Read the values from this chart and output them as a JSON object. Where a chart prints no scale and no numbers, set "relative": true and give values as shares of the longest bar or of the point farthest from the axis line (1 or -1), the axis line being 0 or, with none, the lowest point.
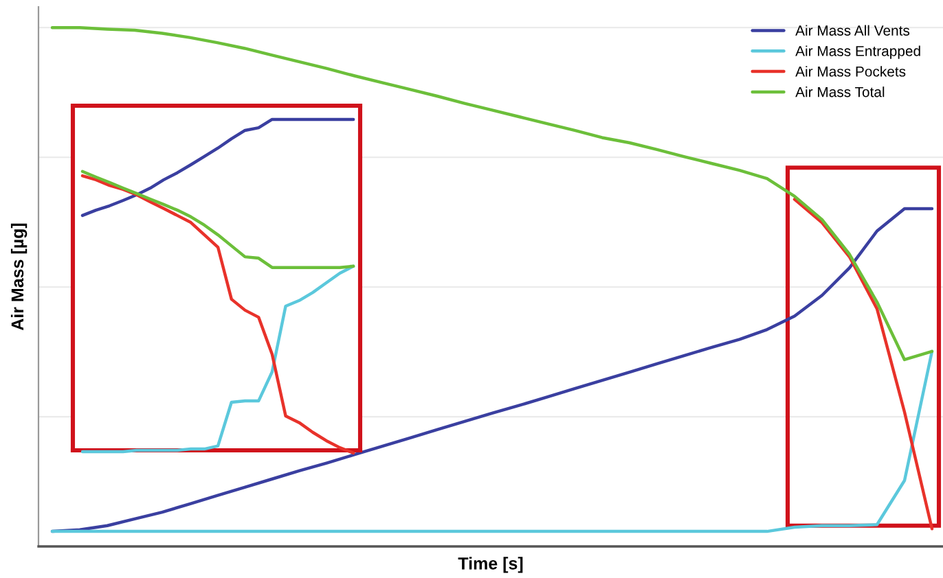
{
  "chart_data": [
    {
      "type": "line",
      "relative": true,
      "xlabel": "Time [s]",
      "ylabel": "Air Mass [µg]",
      "grid": "y",
      "legend": "top right",
      "categories": [
        null,
        null,
        null,
        null,
        null,
        null,
        null,
        null,
        null,
        null,
        null,
        null,
        null,
        null,
        null,
        null,
        null,
        null,
        null,
        null,
        null,
        null,
        null,
        null,
        null,
        null,
        null,
        null,
        null,
        null,
        null,
        null,
        null
      ],
      "series": [
        {
          "name": "Air Mass All Vents",
          "color": "#3a3fa0",
          "values": [
            0.029,
            0.032,
            0.04,
            0.053,
            0.066,
            0.082,
            0.098,
            0.114,
            0.13,
            0.146,
            0.161,
            0.177,
            0.193,
            0.209,
            0.225,
            0.241,
            0.257,
            0.272,
            0.288,
            0.304,
            0.32,
            0.336,
            0.352,
            0.368,
            0.384,
            0.399,
            0.418,
            0.444,
            0.484,
            0.537,
            0.608,
            0.651,
            0.651
          ]
        },
        {
          "name": "Air Mass Entrapped",
          "color": "#5bc8dc",
          "values": [
            0.029,
            0.029,
            0.029,
            0.029,
            0.029,
            0.029,
            0.029,
            0.029,
            0.029,
            0.029,
            0.029,
            0.029,
            0.029,
            0.029,
            0.029,
            0.029,
            0.029,
            0.029,
            0.029,
            0.029,
            0.029,
            0.029,
            0.029,
            0.029,
            0.029,
            0.029,
            0.029,
            0.037,
            0.04,
            0.04,
            0.042,
            0.127,
            0.376
          ]
        },
        {
          "name": "Air Mass Pockets",
          "color": "#e8322a",
          "values": [
            null,
            null,
            null,
            null,
            null,
            null,
            null,
            null,
            null,
            null,
            null,
            null,
            null,
            null,
            null,
            null,
            null,
            null,
            null,
            null,
            null,
            null,
            null,
            null,
            null,
            null,
            null,
            0.669,
            0.624,
            0.558,
            0.458,
            0.259,
            0.034
          ]
        },
        {
          "name": "Air Mass Total",
          "color": "#6cbf3a",
          "values": [
            1.0,
            1.0,
            0.997,
            0.995,
            0.989,
            0.981,
            0.971,
            0.96,
            0.947,
            0.934,
            0.921,
            0.907,
            0.894,
            0.881,
            0.868,
            0.854,
            0.841,
            0.828,
            0.815,
            0.802,
            0.788,
            0.778,
            0.765,
            0.751,
            0.738,
            0.725,
            0.709,
            0.675,
            0.63,
            0.563,
            0.471,
            0.36,
            0.376
          ]
        }
      ]
    },
    {
      "type": "line",
      "relative": true,
      "categories": [
        null,
        null,
        null,
        null,
        null,
        null,
        null,
        null,
        null,
        null,
        null,
        null,
        null,
        null,
        null,
        null,
        null,
        null,
        null,
        null,
        null
      ],
      "series": [
        {
          "color": "#3a3fa0",
          "values": [
            0.712,
            0.728,
            0.741,
            0.757,
            0.774,
            0.794,
            0.819,
            0.84,
            0.864,
            0.889,
            0.914,
            0.942,
            0.967,
            0.975,
            1.0,
            1.0,
            1.0,
            1.0,
            1.0,
            1.0,
            1.0
          ]
        },
        {
          "color": "#5bc8dc",
          "values": [
            0.004,
            0.004,
            0.004,
            0.004,
            0.008,
            0.008,
            0.008,
            0.008,
            0.012,
            0.012,
            0.021,
            0.152,
            0.156,
            0.156,
            0.243,
            0.44,
            0.457,
            0.481,
            0.51,
            0.539,
            0.56
          ]
        },
        {
          "color": "#e8322a",
          "values": [
            0.831,
            0.819,
            0.802,
            0.79,
            0.774,
            0.753,
            0.733,
            0.712,
            0.691,
            0.654,
            0.617,
            0.461,
            0.428,
            0.407,
            0.296,
            0.111,
            0.091,
            0.062,
            0.037,
            0.016,
            0.0
          ]
        },
        {
          "color": "#6cbf3a",
          "values": [
            0.844,
            0.827,
            0.811,
            0.794,
            0.778,
            0.761,
            0.745,
            0.728,
            0.708,
            0.683,
            0.654,
            0.621,
            0.588,
            0.584,
            0.556,
            0.556,
            0.556,
            0.556,
            0.556,
            0.556,
            0.56
          ]
        }
      ]
    }
  ]
}
